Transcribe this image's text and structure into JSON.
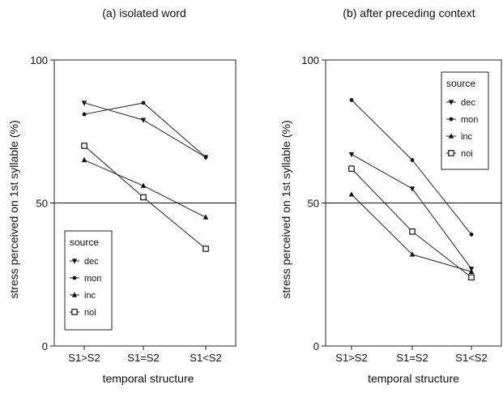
{
  "chart_data": [
    {
      "type": "line",
      "title": "(a) isolated word",
      "xlabel": "temporal structure",
      "ylabel": "stress perceived on 1st syllable (%)",
      "categories": [
        "S1>S2",
        "S1=S2",
        "S1<S2"
      ],
      "ylim": [
        0,
        100
      ],
      "yticks": [
        0,
        50,
        100
      ],
      "reference_line": 50,
      "grid": false,
      "legend": {
        "title": "source",
        "placement": "bottom-left"
      },
      "series": [
        {
          "name": "dec",
          "marker": "triangle-down",
          "values": [
            85,
            79,
            66
          ]
        },
        {
          "name": "mon",
          "marker": "circle",
          "values": [
            81,
            85,
            66
          ]
        },
        {
          "name": "inc",
          "marker": "triangle-up",
          "values": [
            65,
            56,
            45
          ]
        },
        {
          "name": "noi",
          "marker": "square",
          "values": [
            70,
            52,
            34
          ]
        }
      ]
    },
    {
      "type": "line",
      "title": "(b) after preceding context",
      "xlabel": "temporal structure",
      "ylabel": "stress perceived on 1st syllable (%)",
      "categories": [
        "S1>S2",
        "S1=S2",
        "S1<S2"
      ],
      "ylim": [
        0,
        100
      ],
      "yticks": [
        0,
        50,
        100
      ],
      "reference_line": 50,
      "grid": false,
      "legend": {
        "title": "source",
        "placement": "top-right"
      },
      "series": [
        {
          "name": "dec",
          "marker": "triangle-down",
          "values": [
            67,
            55,
            27
          ]
        },
        {
          "name": "mon",
          "marker": "circle",
          "values": [
            86,
            65,
            39
          ]
        },
        {
          "name": "inc",
          "marker": "triangle-up",
          "values": [
            53,
            32,
            26
          ]
        },
        {
          "name": "noi",
          "marker": "square",
          "values": [
            62,
            40,
            24
          ]
        }
      ]
    }
  ]
}
